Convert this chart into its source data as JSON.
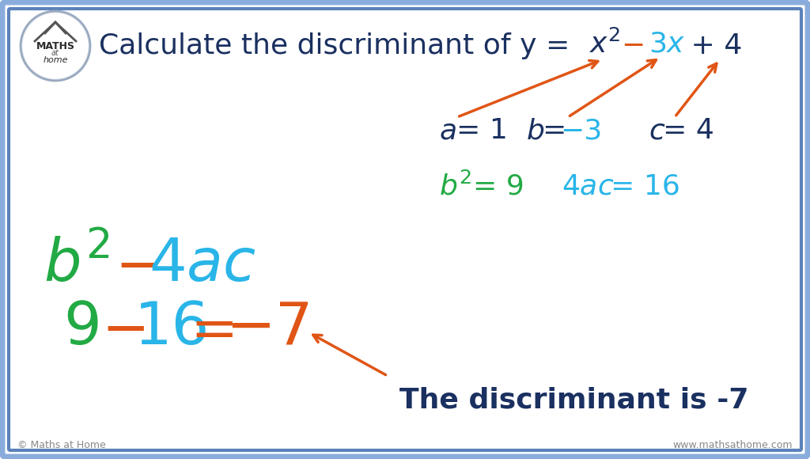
{
  "bg_color": "#ffffff",
  "border_color": "#5b82bb",
  "title_color": "#1a3060",
  "green_color": "#22aa44",
  "cyan_color": "#29b5e8",
  "orange_color": "#e05515",
  "dark_blue": "#1a3060",
  "footer_left": "© Maths at Home",
  "footer_right": "www.mathsathome.com",
  "logo_circle_color": "#b0b8c8",
  "logo_text_color": "#333333"
}
